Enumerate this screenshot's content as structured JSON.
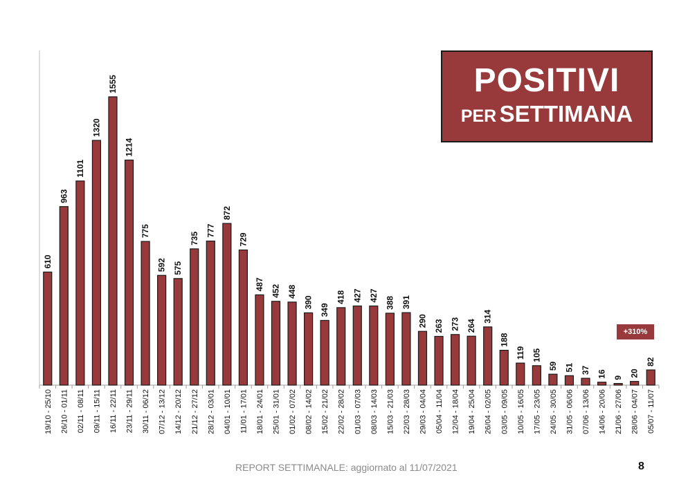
{
  "title": {
    "main": "POSITIVI",
    "sub_small": "PER",
    "sub_big": "SETTIMANA"
  },
  "badge": "+310%",
  "footer": "REPORT SETTIMANALE: aggiornato al 11/07/2021",
  "page_number": "8",
  "colors": {
    "bar": "#98393b",
    "bar_stroke": "#1a1a1a",
    "title_bg": "#98393b"
  },
  "chart_data": {
    "type": "bar",
    "title": "POSITIVI PER SETTIMANA",
    "xlabel": "",
    "ylabel": "",
    "grid": false,
    "categories": [
      "19/10 - 25/10",
      "26/10 - 01/11",
      "02/11 - 08/11",
      "09/11 - 15/11",
      "16/11 - 22/11",
      "23/11 - 29/11",
      "30/11 - 06/12",
      "07/12 - 13/12",
      "14/12 - 20/12",
      "21/12 - 27/12",
      "28/12 - 03/01",
      "04/01 - 10/01",
      "11/01 - 17/01",
      "18/01 - 24/01",
      "25/01 - 31/01",
      "01/02 - 07/02",
      "08/02 - 14/02",
      "15/02 - 21/02",
      "22/02 - 28/02",
      "01/03 - 07/03",
      "08/03 - 14/03",
      "15/03 - 21/03",
      "22/03 - 28/03",
      "29/03 - 04/04",
      "05/04 - 11/04",
      "12/04 - 18/04",
      "19/04 - 25/04",
      "26/04 - 02/05",
      "03/05 - 09/05",
      "10/05 - 16/05",
      "17/05 - 23/05",
      "24/05 - 30/05",
      "31/05 - 06/06",
      "07/06 - 13/06",
      "14/06 - 20/06",
      "21/06 - 27/06",
      "28/06 - 04/07",
      "05/07 - 11/07"
    ],
    "values": [
      610,
      963,
      1101,
      1320,
      1555,
      1214,
      775,
      592,
      575,
      735,
      777,
      872,
      729,
      487,
      452,
      448,
      390,
      349,
      418,
      427,
      427,
      388,
      391,
      290,
      263,
      273,
      264,
      314,
      188,
      119,
      105,
      59,
      51,
      37,
      16,
      9,
      20,
      82
    ],
    "ylim": [
      0,
      1555
    ]
  }
}
